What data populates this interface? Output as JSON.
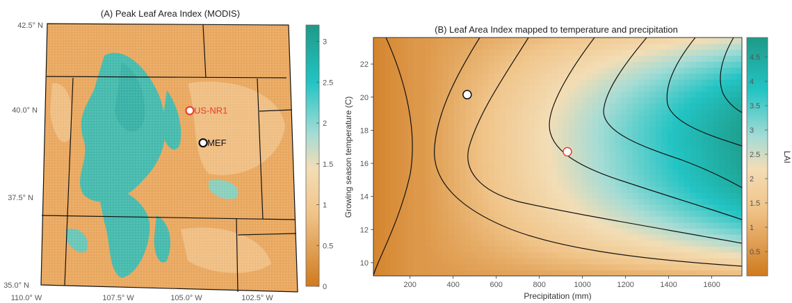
{
  "chart_data": [
    {
      "type": "heatmap",
      "title": "(A) Peak Leaf Area Index (MODIS)",
      "map": true,
      "lat_labels": [
        "42.5",
        "40.0",
        "37.5",
        "35.0"
      ],
      "lat_suffix": "N",
      "lon_labels": [
        "110.0",
        "107.5",
        "105.0",
        "102.5"
      ],
      "lon_suffix": "W",
      "sites": [
        {
          "name": "US-NR1",
          "lon": -105.55,
          "lat": 40.03,
          "color": "#e8402a"
        },
        {
          "name": "MEF",
          "lon": -105.1,
          "lat": 39.1,
          "color": "#111111"
        }
      ],
      "colorbar": {
        "min": 0,
        "max": 3.2,
        "ticks": [
          0,
          0.5,
          1,
          1.5,
          2,
          2.5,
          3
        ],
        "tick_labels": [
          "0",
          "0.5",
          "1",
          "1.5",
          "2",
          "2.5",
          "3"
        ]
      }
    },
    {
      "type": "heatmap",
      "title": "(B) Leaf Area Index mapped to temperature and precipitation",
      "xlabel": "Precipitation (mm)",
      "ylabel": "Growing season temperature (C)",
      "xlim": [
        30,
        1740
      ],
      "ylim": [
        9.2,
        23.6
      ],
      "xticks": [
        200,
        400,
        600,
        800,
        1000,
        1200,
        1400,
        1600
      ],
      "yticks": [
        10,
        12,
        14,
        16,
        18,
        20,
        22
      ],
      "points": [
        {
          "x": 465,
          "y": 20.15,
          "edge": "#111111"
        },
        {
          "x": 930,
          "y": 16.7,
          "edge": "#e8402a"
        }
      ],
      "colorbar": {
        "label": "LAI",
        "min": 0,
        "max": 4.9,
        "ticks": [
          0.5,
          1,
          1.5,
          2,
          2.5,
          3,
          3.5,
          4,
          4.5
        ],
        "tick_labels": [
          "0.5",
          "1",
          "1.5",
          "2",
          "2.5",
          "3",
          "3.5",
          "4",
          "4.5"
        ]
      }
    }
  ]
}
